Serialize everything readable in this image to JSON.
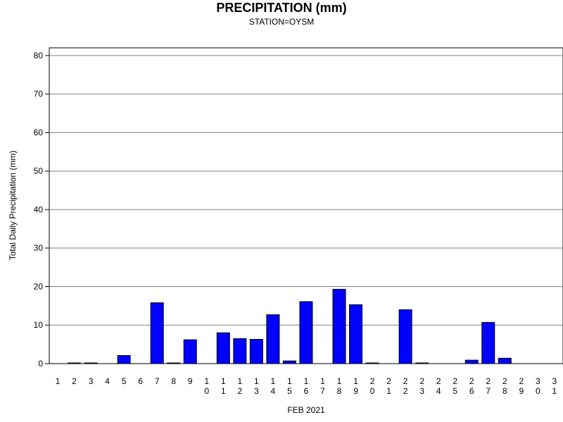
{
  "chart_data": {
    "type": "bar",
    "title": "PRECIPITATION (mm)",
    "subtitle": "STATION=OYSM",
    "xlabel": "FEB 2021",
    "ylabel": "Total Daily Precipitation (mm)",
    "ylim": [
      0,
      82
    ],
    "yticks": [
      0,
      10,
      20,
      30,
      40,
      50,
      60,
      70,
      80
    ],
    "grid": true,
    "categories": [
      "1",
      "2",
      "3",
      "4",
      "5",
      "6",
      "7",
      "8",
      "9",
      "10",
      "11",
      "12",
      "13",
      "14",
      "15",
      "16",
      "17",
      "18",
      "19",
      "20",
      "21",
      "22",
      "23",
      "24",
      "25",
      "26",
      "27",
      "28",
      "29",
      "30",
      "31"
    ],
    "values": [
      null,
      0.1,
      0.1,
      null,
      2.1,
      null,
      15.8,
      0.1,
      6.2,
      null,
      8.0,
      6.5,
      6.3,
      12.7,
      0.7,
      16.1,
      null,
      19.3,
      15.3,
      0.1,
      null,
      14.0,
      0.1,
      null,
      null,
      0.9,
      10.7,
      1.4,
      null,
      null,
      null
    ],
    "colors": {
      "bar": "#0000ff",
      "bar_stroke": "#000000",
      "grid": "#808080"
    }
  }
}
